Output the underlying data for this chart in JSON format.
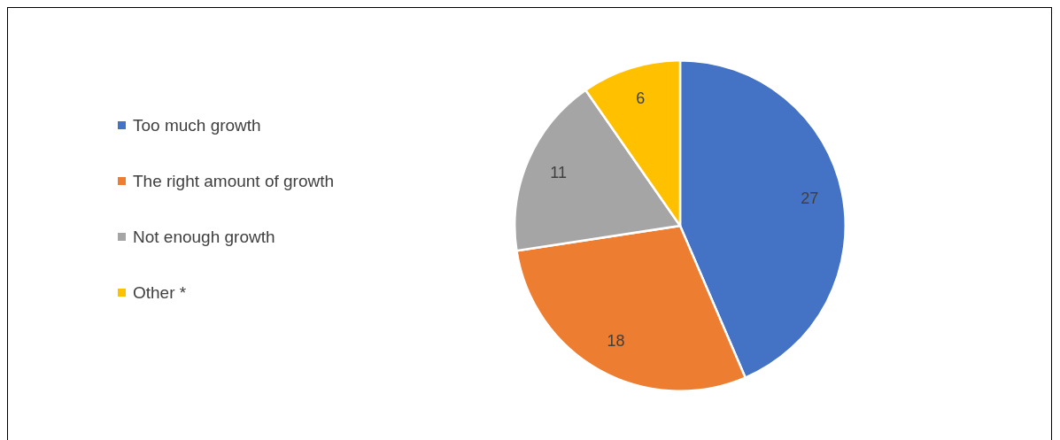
{
  "chart_data": {
    "type": "pie",
    "categories": [
      "Too much growth",
      "The right amount of growth",
      "Not enough growth",
      "Other *"
    ],
    "values": [
      27,
      18,
      11,
      6
    ],
    "colors": [
      "#4472c4",
      "#ed7d31",
      "#a5a5a5",
      "#ffc000"
    ],
    "data_labels": true,
    "legend": "left"
  }
}
